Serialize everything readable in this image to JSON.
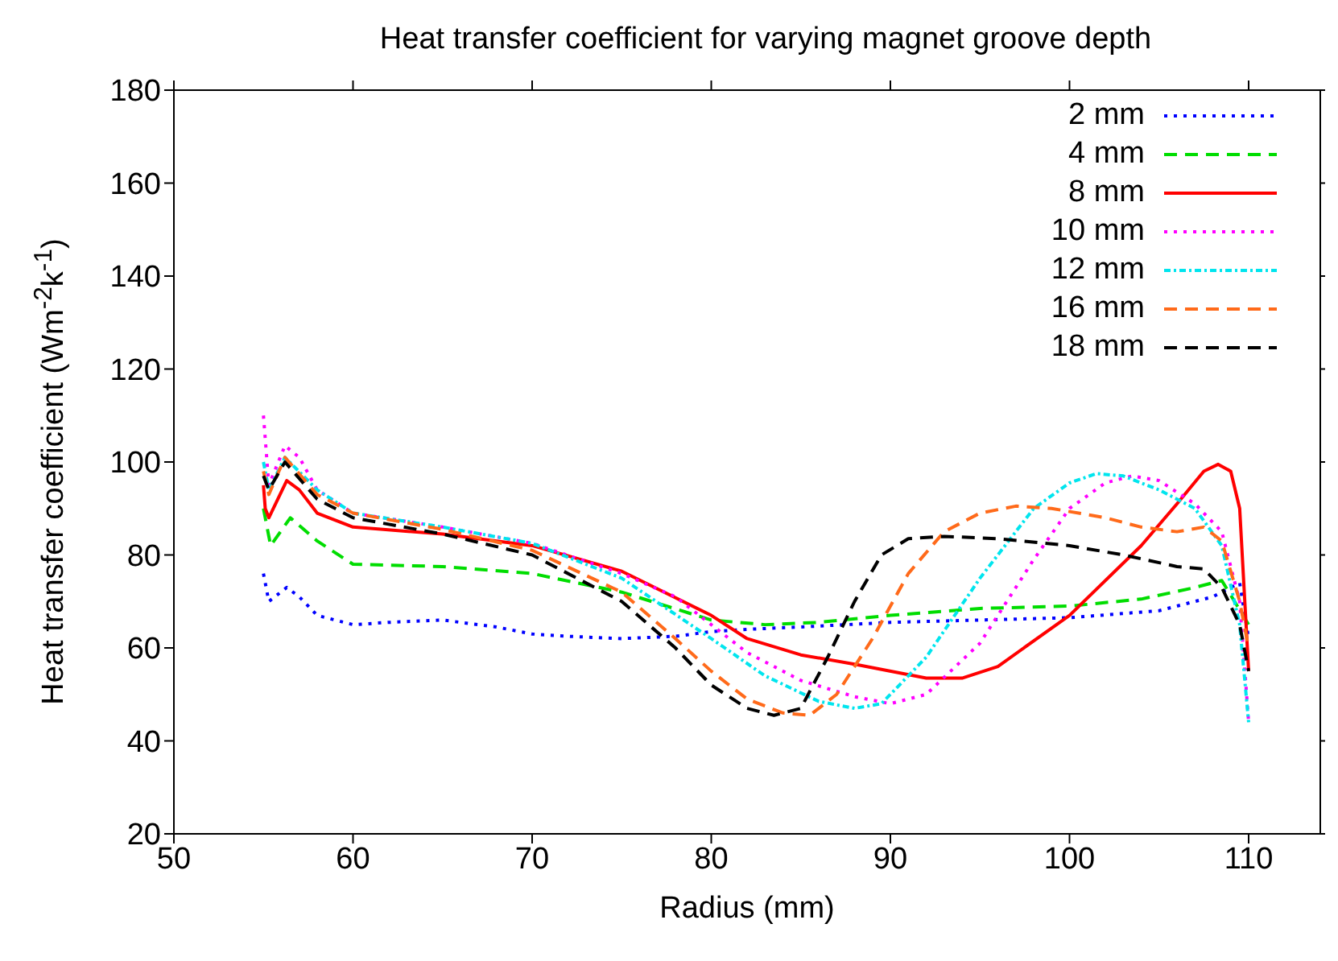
{
  "chart_data": {
    "type": "line",
    "title": "Heat transfer coefficient for varying magnet groove depth",
    "xlabel": "Radius (mm)",
    "ylabel": "Heat transfer coefficient (Wm$^{-2}$k$^{-1}$)",
    "xlim": [
      50,
      114
    ],
    "xticks": [
      50,
      60,
      70,
      80,
      90,
      100,
      110
    ],
    "ylim": [
      20,
      180
    ],
    "yticks": [
      20,
      40,
      60,
      80,
      100,
      120,
      140,
      160,
      180
    ],
    "grid": false,
    "legend": "top right",
    "marker": "none",
    "series": [
      {
        "name": "2 mm",
        "color": "#0000ff",
        "line_style": "dotted",
        "x": [
          55,
          55.3,
          56.3,
          57,
          58,
          60,
          62,
          65,
          68,
          70,
          72,
          75,
          78,
          80,
          82,
          85,
          90,
          95,
          100,
          105,
          108,
          109.5,
          110
        ],
        "values": [
          76,
          70,
          73,
          71,
          67,
          65,
          65.5,
          66,
          64.5,
          63,
          62.5,
          62,
          62.5,
          63.5,
          64,
          64.5,
          65.5,
          66,
          66.5,
          68,
          71,
          74,
          62
        ]
      },
      {
        "name": "4 mm",
        "color": "#00dd00",
        "line_style": "dashed",
        "x": [
          55,
          55.4,
          56.5,
          58,
          60,
          65,
          70,
          75,
          80,
          83,
          86,
          90,
          95,
          100,
          104,
          107,
          108.5,
          110
        ],
        "values": [
          90,
          82,
          88,
          83,
          78,
          77.5,
          76,
          72,
          66,
          65,
          65.5,
          67,
          68.5,
          69,
          70.5,
          73,
          74.5,
          65
        ]
      },
      {
        "name": "8 mm",
        "color": "#ff0000",
        "line_style": "solid",
        "x": [
          55,
          55.1,
          55.3,
          56.3,
          57,
          58,
          60,
          65,
          70,
          75,
          80,
          82,
          85,
          88,
          92,
          94,
          96,
          100,
          104,
          106,
          107.5,
          108.3,
          109,
          109.5,
          110
        ],
        "values": [
          95,
          90,
          88,
          96,
          94,
          89,
          86,
          84.5,
          82,
          76.5,
          67,
          62,
          58.5,
          56.5,
          53.5,
          53.5,
          56,
          67,
          82,
          91,
          98,
          99.5,
          98,
          90,
          55
        ]
      },
      {
        "name": "10 mm",
        "color": "#ff00ff",
        "line_style": "dotted",
        "x": [
          55,
          55.3,
          56.2,
          57,
          58,
          60,
          65,
          70,
          75,
          78,
          80,
          82,
          85,
          88,
          90,
          92,
          95,
          98,
          100,
          102,
          103.5,
          105,
          107,
          108.5,
          109.5,
          110
        ],
        "values": [
          110,
          95,
          103.5,
          101,
          94,
          89,
          86,
          82.5,
          76,
          71,
          65,
          59,
          53,
          49.5,
          48,
          50,
          61,
          79,
          90,
          95.5,
          97,
          96,
          91,
          85,
          70,
          44
        ]
      },
      {
        "name": "12 mm",
        "color": "#00e5ee",
        "line_style": "dashdot",
        "x": [
          55,
          55.3,
          56.2,
          58,
          60,
          65,
          70,
          75,
          80,
          83,
          86,
          88,
          89.5,
          92,
          95,
          98,
          100,
          101.5,
          103,
          105,
          107,
          108.5,
          109.5,
          110
        ],
        "values": [
          100,
          94,
          101,
          94,
          89,
          86,
          82.5,
          75,
          62,
          54,
          48.5,
          47,
          48,
          58,
          75,
          90,
          95.5,
          97.5,
          97,
          94,
          90,
          82,
          65,
          44
        ]
      },
      {
        "name": "16 mm",
        "color": "#ff6a1a",
        "line_style": "dashed",
        "x": [
          55,
          55.3,
          56.2,
          58,
          60,
          65,
          70,
          75,
          78,
          80,
          82,
          84,
          85.5,
          87,
          89,
          91,
          93,
          95,
          97,
          99,
          102,
          104,
          106,
          107.5,
          108.5,
          109.5,
          110
        ],
        "values": [
          98,
          93,
          101,
          93,
          89,
          85.5,
          81,
          72,
          62,
          55,
          49,
          46,
          45.5,
          50,
          62,
          76,
          85,
          89,
          90.5,
          90,
          88,
          86,
          85,
          86,
          83,
          70,
          60
        ]
      },
      {
        "name": "18 mm",
        "color": "#000000",
        "line_style": "dashed",
        "x": [
          55,
          55.3,
          56.2,
          58,
          60,
          65,
          70,
          75,
          78,
          80,
          82,
          83.5,
          85,
          86.5,
          88,
          89.5,
          91,
          93,
          96,
          100,
          103,
          106,
          107.5,
          108.5,
          109.5,
          110
        ],
        "values": [
          97,
          94,
          100,
          92,
          88,
          84.5,
          80,
          70,
          60,
          52,
          47,
          45.5,
          47,
          58,
          70,
          80,
          83.5,
          84,
          83.5,
          82,
          80,
          77.5,
          77,
          73,
          65,
          55
        ]
      }
    ]
  }
}
